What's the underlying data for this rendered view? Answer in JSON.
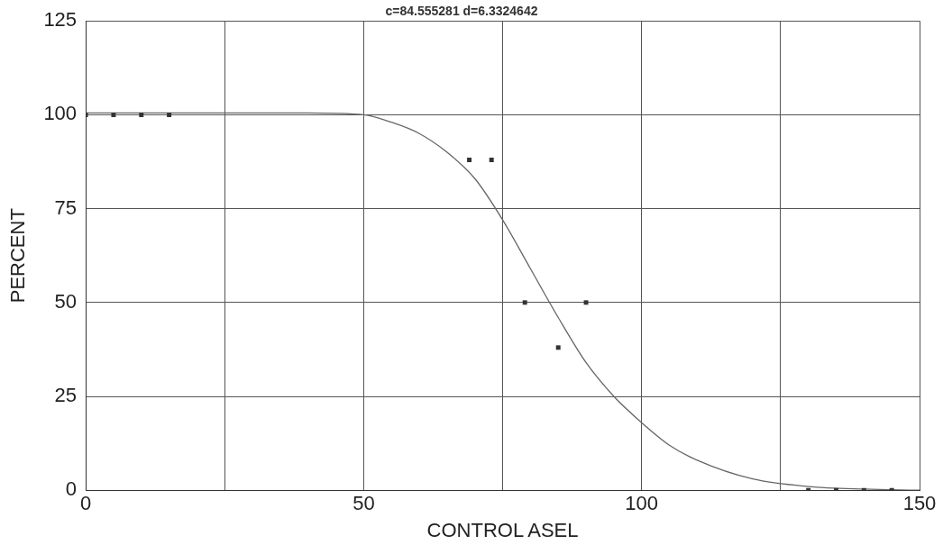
{
  "chart_data": {
    "type": "scatter",
    "title": "c=84.555281 d=6.3324642",
    "xlabel": "CONTROL ASEL",
    "ylabel": "PERCENT",
    "xlim": [
      0,
      150
    ],
    "xticks": [
      0,
      {
        "value": 25,
        "label": null
      },
      50,
      {
        "value": 75,
        "label": null
      },
      100,
      {
        "value": 125,
        "label": null
      },
      150
    ],
    "ylim": [
      0,
      125
    ],
    "yticks": [
      0,
      25,
      50,
      75,
      100,
      125
    ],
    "grid": true,
    "legend": false,
    "marker": "square",
    "series": [
      {
        "color": "#333333",
        "x": [
          0,
          5,
          10,
          15,
          69,
          73,
          79,
          85,
          90,
          130,
          135,
          140,
          145
        ],
        "values": [
          100,
          100,
          100,
          100,
          88,
          88,
          50,
          38,
          50,
          0,
          0,
          0,
          0
        ]
      },
      {
        "type": "line",
        "color": "#666666",
        "marker": "none",
        "x": [
          0,
          20,
          40,
          50,
          55,
          60,
          65,
          70,
          75,
          80,
          85,
          90,
          95,
          100,
          105,
          110,
          120,
          130,
          140,
          150
        ],
        "values": [
          100.5,
          100.5,
          100.5,
          100,
          98,
          95,
          90,
          83,
          72,
          59,
          46,
          34,
          25,
          18,
          12,
          8,
          3,
          1,
          0.3,
          0
        ]
      }
    ]
  }
}
